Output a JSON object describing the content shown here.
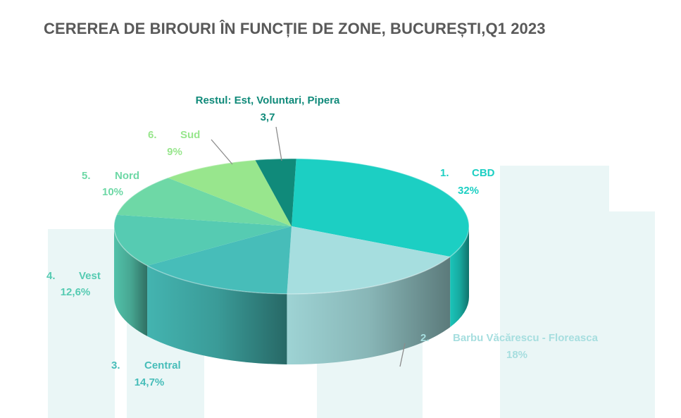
{
  "chart_data": {
    "type": "pie",
    "title": "CEREREA DE BIROURI ÎN FUNCȚIE DE ZONE, BUCUREȘTI,Q1 2023",
    "three_d": true,
    "legend": "none",
    "slices": [
      {
        "num": "1.",
        "name": "CBD",
        "value": 32,
        "value_label": "32%",
        "color": "#1ccfc3"
      },
      {
        "num": "2.",
        "name": "Barbu Văcărescu - Floreasca",
        "value": 18,
        "value_label": "18%",
        "color": "#a6dedf"
      },
      {
        "num": "3.",
        "name": "Central",
        "value": 14.7,
        "value_label": "14,7%",
        "color": "#47bdb9"
      },
      {
        "num": "4.",
        "name": "Vest",
        "value": 12.6,
        "value_label": "12,6%",
        "color": "#56cbb2"
      },
      {
        "num": "5.",
        "name": "Nord",
        "value": 10,
        "value_label": "10%",
        "color": "#6ed8a6"
      },
      {
        "num": "6.",
        "name": "Sud",
        "value": 9,
        "value_label": "9%",
        "color": "#98e68d"
      },
      {
        "num": "",
        "name": "Restul: Est, Voluntari, Pipera",
        "value": 3.7,
        "value_label": "3,7",
        "color": "#108a7a"
      }
    ]
  }
}
